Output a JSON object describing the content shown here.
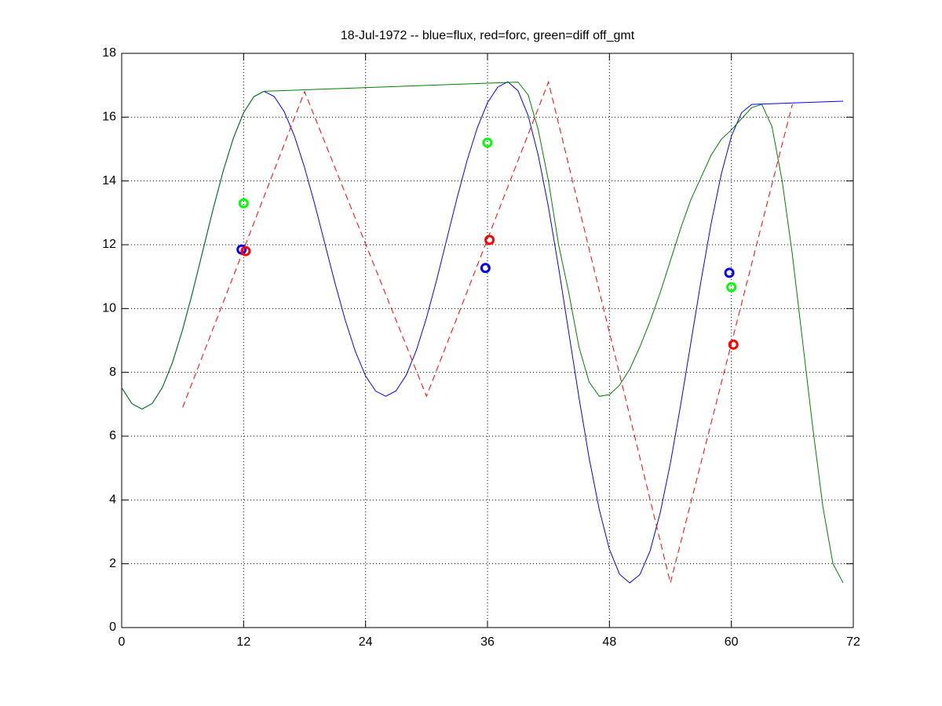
{
  "chart_data": {
    "type": "line",
    "title": "18-Jul-1972 -- blue=flux, red=forc, green=diff off_gmt",
    "xlim": [
      0,
      72
    ],
    "xticks": [
      0,
      12,
      24,
      36,
      48,
      60,
      72
    ],
    "ylim": [
      0,
      18
    ],
    "yticks": [
      0,
      2,
      4,
      6,
      8,
      10,
      12,
      14,
      16,
      18
    ],
    "grid": true,
    "series": [
      {
        "color": "#0000ff",
        "mode": "line",
        "dash": "solid",
        "x": [
          0,
          1,
          2,
          3,
          4,
          5,
          6,
          7,
          8,
          9,
          10,
          11,
          12,
          13,
          14,
          15,
          16,
          17,
          18,
          19,
          20,
          21,
          22,
          23,
          24,
          25,
          26,
          27,
          28,
          29,
          30,
          31,
          32,
          33,
          34,
          35,
          36,
          37,
          38,
          39,
          40,
          41,
          42,
          43,
          44,
          45,
          46,
          47,
          48,
          49,
          50,
          51,
          52,
          53,
          54,
          55,
          56,
          57,
          58,
          59,
          60,
          61,
          62,
          71
        ],
        "values": [
          7.52,
          7.02,
          6.85,
          7.02,
          7.52,
          8.31,
          9.34,
          10.54,
          11.83,
          13.12,
          14.32,
          15.35,
          16.14,
          16.64,
          16.81,
          16.65,
          16.17,
          15.41,
          14.42,
          13.27,
          12.03,
          10.79,
          9.64,
          8.65,
          7.89,
          7.41,
          7.25,
          7.42,
          7.91,
          8.69,
          9.71,
          10.9,
          12.18,
          13.46,
          14.65,
          15.67,
          16.45,
          16.94,
          17.11,
          16.83,
          16.05,
          14.8,
          13.18,
          11.28,
          9.25,
          7.22,
          5.32,
          3.7,
          2.45,
          1.67,
          1.4,
          1.66,
          2.4,
          3.6,
          5.15,
          6.96,
          8.9,
          10.84,
          12.65,
          14.2,
          15.4,
          16.14,
          16.4,
          16.5
        ]
      },
      {
        "color": "#008000",
        "mode": "line",
        "dash": "solid",
        "x": [
          0,
          1,
          2,
          3,
          4,
          5,
          6,
          7,
          8,
          9,
          10,
          11,
          12,
          13,
          14,
          39,
          40,
          41,
          42,
          43,
          44,
          45,
          46,
          47,
          48,
          49,
          50,
          51,
          52,
          53,
          54,
          55,
          56,
          57,
          58,
          59,
          60,
          61,
          62,
          63,
          64,
          65,
          66,
          67,
          68,
          69,
          70,
          71
        ],
        "values": [
          7.52,
          7.02,
          6.85,
          7.02,
          7.52,
          8.31,
          9.34,
          10.54,
          11.83,
          13.12,
          14.32,
          15.35,
          16.14,
          16.64,
          16.81,
          17.1,
          16.7,
          15.6,
          14,
          12,
          10.5,
          8.8,
          7.7,
          7.25,
          7.3,
          7.6,
          8.1,
          8.8,
          9.6,
          10.5,
          11.5,
          12.5,
          13.4,
          14.1,
          14.8,
          15.3,
          15.6,
          15.95,
          16.3,
          16.4,
          15.7,
          14,
          11.7,
          9,
          6.3,
          3.8,
          2,
          1.4
        ]
      },
      {
        "color": "#ff0000",
        "mode": "line",
        "dash": "dashed",
        "x": [
          6,
          18,
          30,
          42,
          54,
          66
        ],
        "values": [
          6.9,
          16.8,
          7.25,
          17.1,
          1.4,
          16.4
        ]
      },
      {
        "color": "#0000ff",
        "mode": "markers",
        "x": [
          11.8,
          35.8,
          59.8
        ],
        "values": [
          11.85,
          11.27,
          11.12
        ]
      },
      {
        "color": "#00ff00",
        "mode": "markers",
        "x": [
          12,
          36,
          60
        ],
        "values": [
          13.3,
          15.2,
          10.67
        ]
      },
      {
        "color": "#ff0000",
        "mode": "markers",
        "x": [
          12.2,
          36.2,
          60.2
        ],
        "values": [
          11.8,
          12.15,
          8.87
        ]
      }
    ]
  }
}
